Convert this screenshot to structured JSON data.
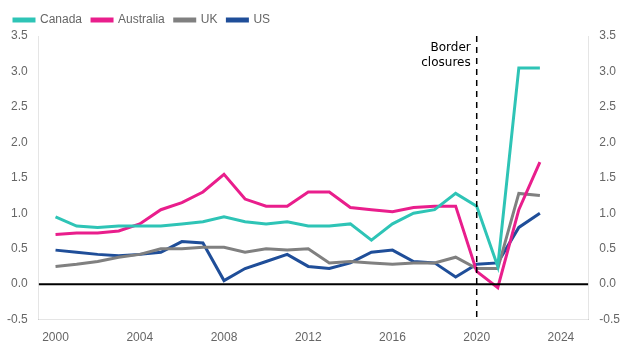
{
  "chart_data": {
    "type": "line",
    "x": [
      2000,
      2001,
      2002,
      2003,
      2004,
      2005,
      2006,
      2007,
      2008,
      2009,
      2010,
      2011,
      2012,
      2013,
      2014,
      2015,
      2016,
      2017,
      2018,
      2019,
      2020,
      2021,
      2022,
      2023
    ],
    "series": [
      {
        "name": "Canada",
        "color": "#2ec4b6",
        "values": [
          0.95,
          0.82,
          0.8,
          0.82,
          0.82,
          0.82,
          0.85,
          0.88,
          0.95,
          0.88,
          0.85,
          0.88,
          0.82,
          0.82,
          0.85,
          0.62,
          0.85,
          1.0,
          1.05,
          1.28,
          1.1,
          0.25,
          3.05,
          3.05
        ]
      },
      {
        "name": "Australia",
        "color": "#e91e8c",
        "values": [
          0.7,
          0.72,
          0.72,
          0.75,
          0.85,
          1.05,
          1.15,
          1.3,
          1.55,
          1.2,
          1.1,
          1.1,
          1.3,
          1.3,
          1.08,
          1.05,
          1.02,
          1.08,
          1.1,
          1.1,
          0.18,
          -0.05,
          1.05,
          1.72
        ]
      },
      {
        "name": "UK",
        "color": "#808080",
        "values": [
          0.25,
          0.28,
          0.32,
          0.38,
          0.42,
          0.5,
          0.5,
          0.52,
          0.52,
          0.45,
          0.5,
          0.48,
          0.5,
          0.3,
          0.32,
          0.3,
          0.28,
          0.3,
          0.3,
          0.38,
          0.22,
          0.22,
          1.28,
          1.25
        ]
      },
      {
        "name": "US",
        "color": "#1f4e99",
        "values": [
          0.48,
          0.45,
          0.42,
          0.4,
          0.42,
          0.45,
          0.6,
          0.58,
          0.05,
          0.22,
          0.32,
          0.42,
          0.25,
          0.22,
          0.3,
          0.45,
          0.48,
          0.32,
          0.3,
          0.1,
          0.28,
          0.3,
          0.8,
          1.0
        ]
      }
    ],
    "xlim": [
      1999.2,
      2025.3
    ],
    "xticks": [
      2000,
      2004,
      2008,
      2012,
      2016,
      2020,
      2024
    ],
    "ylim": [
      -0.5,
      3.5
    ],
    "yticks": [
      -0.5,
      {
        "value": 0,
        "label": "0.0"
      },
      0.5,
      {
        "value": 1,
        "label": "1.0"
      },
      1.5,
      {
        "value": 2,
        "label": "2.0"
      },
      2.5,
      {
        "value": 3,
        "label": "3.0"
      },
      3.5
    ],
    "y2lim": [
      -0.5,
      3.5
    ],
    "y2ticks": [
      -0.5,
      {
        "value": 0,
        "label": "0.0"
      },
      0.5,
      {
        "value": 1,
        "label": "1.0"
      },
      1.5,
      {
        "value": 2,
        "label": "2.0"
      },
      2.5,
      {
        "value": 3,
        "label": "3.0"
      },
      3.5
    ],
    "annotations": [
      {
        "type": "hline",
        "y": 0,
        "color": "#000000"
      },
      {
        "type": "vline",
        "x": 2020,
        "color": "#000000",
        "text": [
          "Border",
          "closures"
        ]
      }
    ],
    "legend": "upper left",
    "grid": false
  }
}
